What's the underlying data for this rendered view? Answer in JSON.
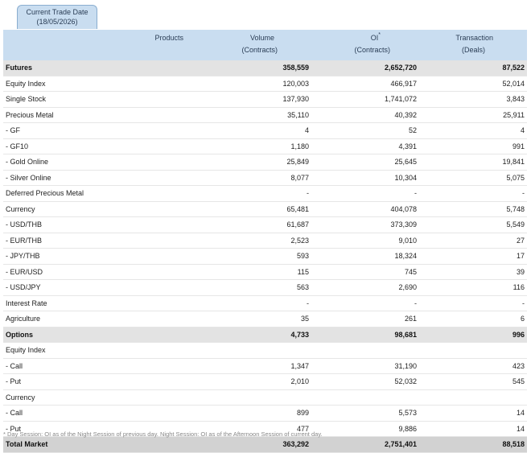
{
  "tab": {
    "label": "Current Trade Date",
    "date": "(18/05/2026)"
  },
  "headers": {
    "products": "Products",
    "volume": "Volume",
    "volume_unit": "(Contracts)",
    "oi": "OI",
    "oi_mark": "*",
    "oi_unit": "(Contracts)",
    "transaction": "Transaction",
    "transaction_unit": "(Deals)"
  },
  "rows": [
    {
      "product": "Futures",
      "volume": "358,559",
      "oi": "2,652,720",
      "transaction": "87,522"
    },
    {
      "product": "Equity Index",
      "volume": "120,003",
      "oi": "466,917",
      "transaction": "52,014"
    },
    {
      "product": "Single Stock",
      "volume": "137,930",
      "oi": "1,741,072",
      "transaction": "3,843"
    },
    {
      "product": "Precious Metal",
      "volume": "35,110",
      "oi": "40,392",
      "transaction": "25,911"
    },
    {
      "product": "- GF",
      "volume": "4",
      "oi": "52",
      "transaction": "4"
    },
    {
      "product": "- GF10",
      "volume": "1,180",
      "oi": "4,391",
      "transaction": "991"
    },
    {
      "product": "- Gold Online",
      "volume": "25,849",
      "oi": "25,645",
      "transaction": "19,841"
    },
    {
      "product": "- Silver Online",
      "volume": "8,077",
      "oi": "10,304",
      "transaction": "5,075"
    },
    {
      "product": "Deferred Precious Metal",
      "volume": "-",
      "oi": "-",
      "transaction": "-"
    },
    {
      "product": "Currency",
      "volume": "65,481",
      "oi": "404,078",
      "transaction": "5,748"
    },
    {
      "product": "- USD/THB",
      "volume": "61,687",
      "oi": "373,309",
      "transaction": "5,549"
    },
    {
      "product": "- EUR/THB",
      "volume": "2,523",
      "oi": "9,010",
      "transaction": "27"
    },
    {
      "product": "- JPY/THB",
      "volume": "593",
      "oi": "18,324",
      "transaction": "17"
    },
    {
      "product": "- EUR/USD",
      "volume": "115",
      "oi": "745",
      "transaction": "39"
    },
    {
      "product": "- USD/JPY",
      "volume": "563",
      "oi": "2,690",
      "transaction": "116"
    },
    {
      "product": "Interest Rate",
      "volume": "-",
      "oi": "-",
      "transaction": "-"
    },
    {
      "product": "Agriculture",
      "volume": "35",
      "oi": "261",
      "transaction": "6"
    },
    {
      "product": "Options",
      "volume": "4,733",
      "oi": "98,681",
      "transaction": "996"
    },
    {
      "product": "Equity Index",
      "volume": "",
      "oi": "",
      "transaction": ""
    },
    {
      "product": "- Call",
      "volume": "1,347",
      "oi": "31,190",
      "transaction": "423"
    },
    {
      "product": "- Put",
      "volume": "2,010",
      "oi": "52,032",
      "transaction": "545"
    },
    {
      "product": "Currency",
      "volume": "",
      "oi": "",
      "transaction": ""
    },
    {
      "product": "- Call",
      "volume": "899",
      "oi": "5,573",
      "transaction": "14"
    },
    {
      "product": "- Put",
      "volume": "477",
      "oi": "9,886",
      "transaction": "14"
    },
    {
      "product": "Total Market",
      "volume": "363,292",
      "oi": "2,751,401",
      "transaction": "88,518"
    }
  ],
  "footnote": "* Day Session: OI as of the Night Session of previous day. Night Session: OI as of the Afternoon Session of current day."
}
